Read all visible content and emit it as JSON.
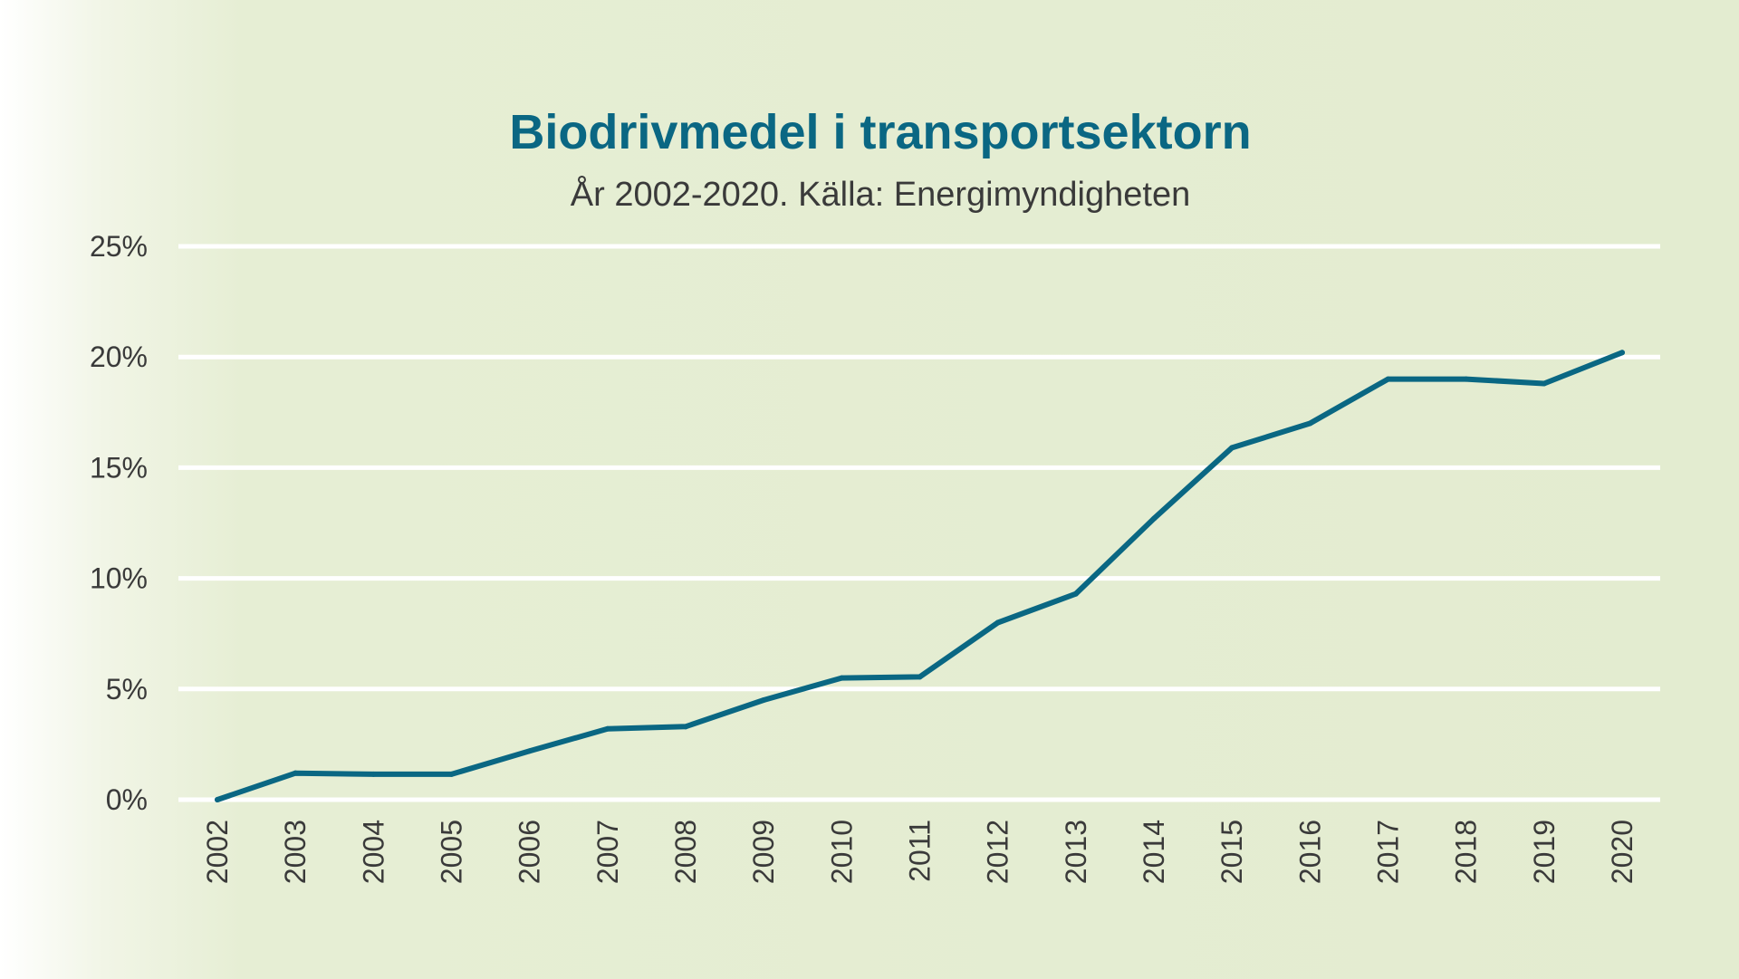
{
  "chart_data": {
    "type": "line",
    "title": "Biodrivmedel i transportsektorn",
    "subtitle": "År 2002-2020. Källa: Energimyndigheten",
    "xlabel": "",
    "ylabel": "",
    "categories": [
      "2002",
      "2003",
      "2004",
      "2005",
      "2006",
      "2007",
      "2008",
      "2009",
      "2010",
      "2011",
      "2012",
      "2013",
      "2014",
      "2015",
      "2016",
      "2017",
      "2018",
      "2019",
      "2020"
    ],
    "series": [
      {
        "values": [
          0.0,
          1.2,
          1.15,
          1.15,
          2.2,
          3.2,
          3.3,
          4.5,
          5.5,
          5.55,
          8.0,
          9.3,
          12.7,
          15.9,
          17.0,
          19.0,
          19.0,
          18.8,
          20.2
        ]
      }
    ],
    "ylim": [
      0,
      25
    ],
    "yticks": [
      0,
      5,
      10,
      15,
      20,
      25
    ],
    "ytick_labels": [
      "0%",
      "5%",
      "10%",
      "15%",
      "20%",
      "25%"
    ],
    "grid": true,
    "legend": "none",
    "colors": {
      "line": "#0a6783",
      "title": "#0a6783",
      "subtitle": "#3a3a3a",
      "tick_text": "#3a3a3a",
      "gridline": "#ffffff"
    }
  }
}
